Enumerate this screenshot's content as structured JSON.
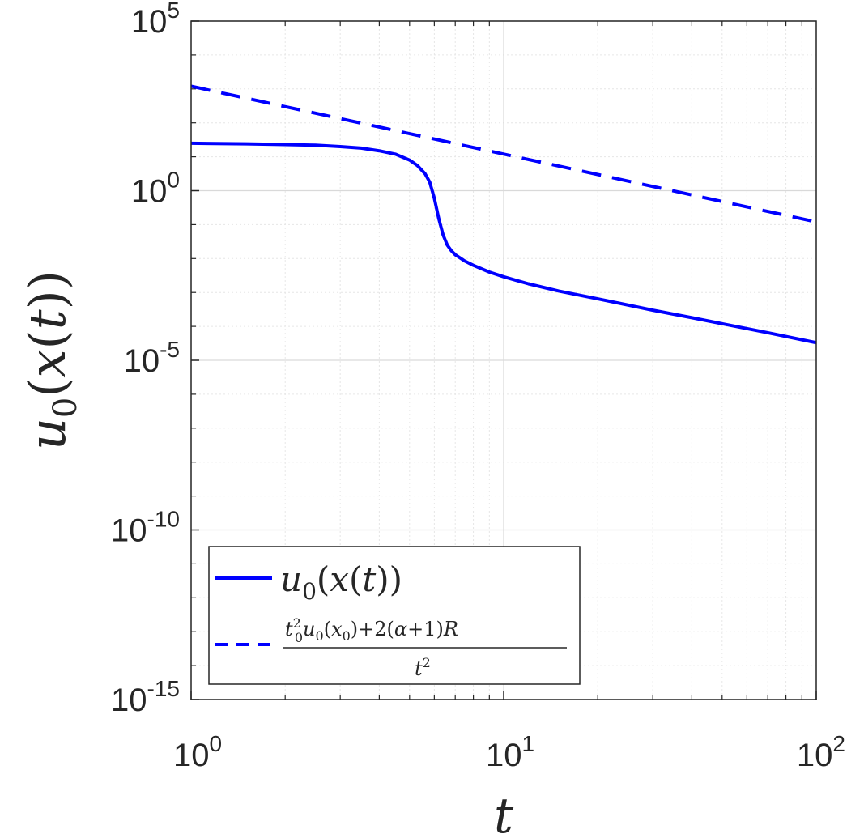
{
  "chart_data": {
    "type": "line",
    "xscale": "log",
    "yscale": "log",
    "xlim": [
      1,
      100
    ],
    "ylim": [
      1e-15,
      100000
    ],
    "grid": true,
    "minor_grid": true,
    "xlabel": "t",
    "ylabel": "u0(x(t))",
    "x_ticks": [
      {
        "value": 1,
        "base": "10",
        "exp": "0"
      },
      {
        "value": 10,
        "base": "10",
        "exp": "1"
      },
      {
        "value": 100,
        "base": "10",
        "exp": "2"
      }
    ],
    "y_ticks": [
      {
        "value": 1e-15,
        "base": "10",
        "exp": "-15"
      },
      {
        "value": 1e-10,
        "base": "10",
        "exp": "-10"
      },
      {
        "value": 1e-05,
        "base": "10",
        "exp": "-5"
      },
      {
        "value": 1,
        "base": "10",
        "exp": "0"
      },
      {
        "value": 100000,
        "base": "10",
        "exp": "5"
      }
    ],
    "legend_position": "bottom-left",
    "series": [
      {
        "name": "u0(x(t))",
        "style": "solid",
        "color": "#0000ff",
        "x": [
          1,
          1.5,
          2,
          2.5,
          3,
          3.5,
          4,
          4.5,
          5,
          5.3,
          5.6,
          5.8,
          6.0,
          6.2,
          6.4,
          6.6,
          6.8,
          7,
          7.5,
          8,
          9,
          10,
          12,
          15,
          20,
          30,
          40,
          50,
          70,
          100
        ],
        "y": [
          25,
          24,
          23,
          22,
          20,
          18,
          15,
          12,
          8,
          5.5,
          3.2,
          1.8,
          0.6,
          0.15,
          0.05,
          0.025,
          0.017,
          0.013,
          0.0085,
          0.0063,
          0.004,
          0.0029,
          0.0018,
          0.0011,
          0.00065,
          0.0003,
          0.00018,
          0.00012,
          6.5e-05,
          3.3e-05
        ]
      },
      {
        "name": "(t0² u0(x0) + 2(α+1)R) / t²",
        "style": "dashed",
        "color": "#0000ff",
        "x": [
          1,
          100
        ],
        "y": [
          1200,
          0.12
        ]
      }
    ]
  }
}
